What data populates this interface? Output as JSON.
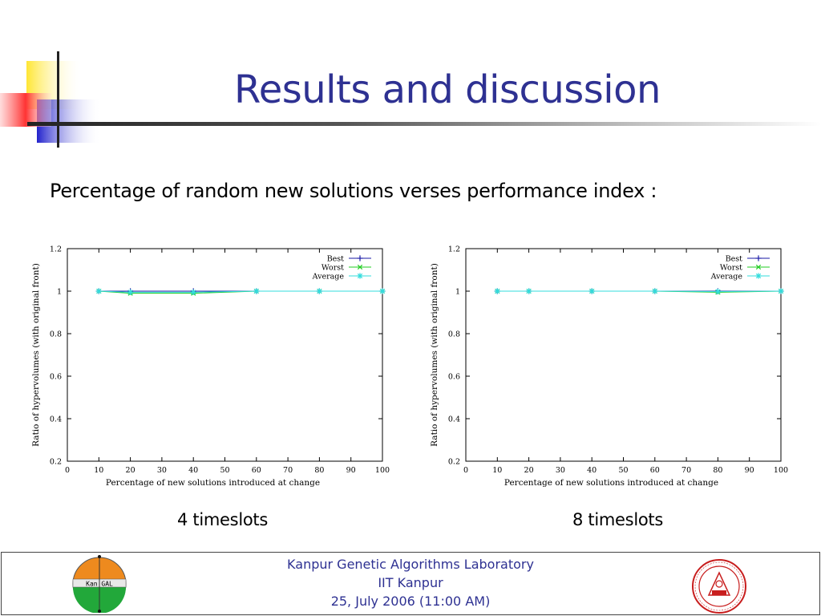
{
  "slide": {
    "title": "Results and discussion",
    "subtitle": "Percentage of random new solutions verses performance index :"
  },
  "chart_data": [
    {
      "type": "line",
      "caption": "4 timeslots",
      "xlabel": "Percentage of new solutions introduced at change",
      "ylabel": "Ratio of hypervolumes (with original front)",
      "xlim": [
        0,
        100
      ],
      "ylim": [
        0.2,
        1.2
      ],
      "xticks": [
        0,
        10,
        20,
        30,
        40,
        50,
        60,
        70,
        80,
        90,
        100
      ],
      "yticks": [
        0.2,
        0.4,
        0.6,
        0.8,
        1,
        1.2
      ],
      "legend": "top-right",
      "x": [
        10,
        20,
        40,
        60,
        80,
        100
      ],
      "series": [
        {
          "name": "Best",
          "values": [
            1,
            1,
            1,
            1,
            1,
            1
          ],
          "color": "#1a1aa6",
          "marker": "plus"
        },
        {
          "name": "Worst",
          "values": [
            1,
            0.99,
            0.99,
            1,
            1,
            1
          ],
          "color": "#22cc22",
          "marker": "cross"
        },
        {
          "name": "Average",
          "values": [
            1,
            0.995,
            0.995,
            1,
            1,
            1
          ],
          "color": "#33dddd",
          "marker": "star"
        }
      ]
    },
    {
      "type": "line",
      "caption": "8 timeslots",
      "xlabel": "Percentage of new solutions introduced at change",
      "ylabel": "Ratio of hypervolumes (with original front)",
      "xlim": [
        0,
        100
      ],
      "ylim": [
        0.2,
        1.2
      ],
      "xticks": [
        0,
        10,
        20,
        30,
        40,
        50,
        60,
        70,
        80,
        90,
        100
      ],
      "yticks": [
        0.2,
        0.4,
        0.6,
        0.8,
        1,
        1.2
      ],
      "legend": "top-right",
      "x": [
        10,
        20,
        40,
        60,
        80,
        100
      ],
      "series": [
        {
          "name": "Best",
          "values": [
            1,
            1,
            1,
            1,
            1,
            1
          ],
          "color": "#1a1aa6",
          "marker": "plus"
        },
        {
          "name": "Worst",
          "values": [
            1,
            1,
            1,
            1,
            0.995,
            1
          ],
          "color": "#22cc22",
          "marker": "cross"
        },
        {
          "name": "Average",
          "values": [
            1,
            1,
            1,
            1,
            0.998,
            1
          ],
          "color": "#33dddd",
          "marker": "star"
        }
      ]
    }
  ],
  "footer": {
    "line1": "Kanpur Genetic Algorithms Laboratory",
    "line2": "IIT Kanpur",
    "line3": "25, July 2006 (11:00 AM)",
    "logo_left_text": "Kan GAL"
  }
}
